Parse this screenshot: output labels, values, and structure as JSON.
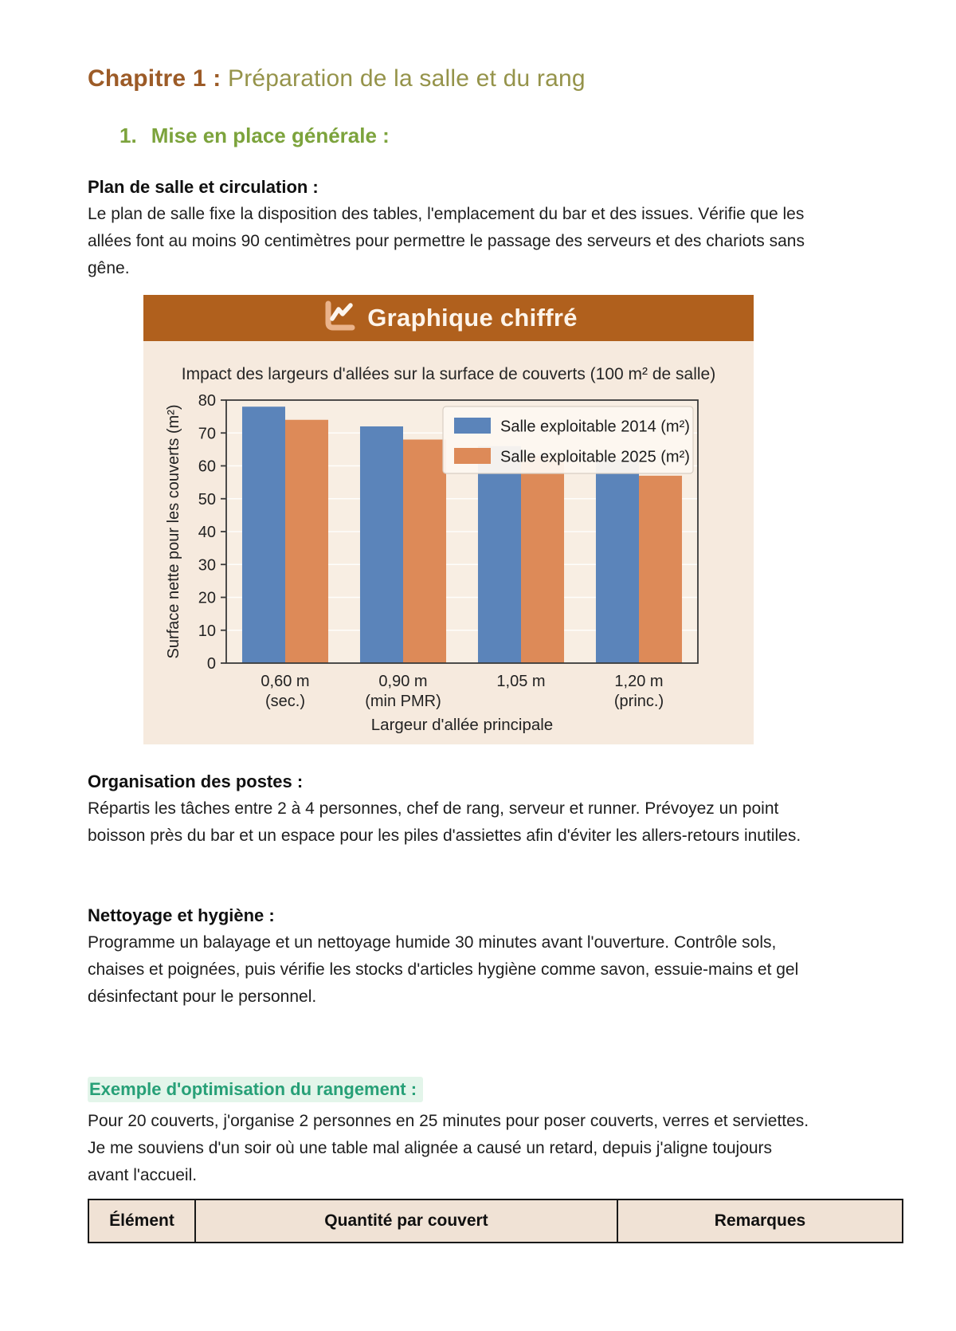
{
  "chapter": {
    "prefix": "Chapitre 1 :",
    "title": "Préparation de la salle et du rang"
  },
  "section": {
    "number": "1.",
    "title": "Mise en place générale :"
  },
  "blocks": {
    "plan": {
      "heading": "Plan de salle et circulation :",
      "body": "Le plan de salle fixe la disposition des tables, l'emplacement du bar et des issues. Vérifie que les allées font au moins 90 centimètres pour permettre le passage des serveurs et des chariots sans gêne."
    },
    "organisation": {
      "heading": "Organisation des postes :",
      "body": "Répartis les tâches entre 2 à 4 personnes, chef de rang, serveur et runner. Prévoyez un point boisson près du bar et un espace pour les piles d'assiettes afin d'éviter les allers-retours inutiles."
    },
    "nettoyage": {
      "heading": "Nettoyage et hygiène :",
      "body": "Programme un balayage et un nettoyage humide 30 minutes avant l'ouverture. Contrôle sols, chaises et poignées, puis vérifie les stocks d'articles hygiène comme savon, essuie-mains et gel désinfectant pour le personnel."
    },
    "exemple": {
      "heading": "Exemple d'optimisation du rangement :",
      "body": "Pour 20 couverts, j'organise 2 personnes en 25 minutes pour poser couverts, verres et serviettes. Je me souviens d'un soir où une table mal alignée a causé un retard, depuis j'aligne toujours avant l'accueil."
    }
  },
  "chart_card": {
    "banner_title": "Graphique chiffré",
    "banner_icon": "line-chart-icon",
    "banner_color": "#b0601d",
    "card_bg": "#f6eade"
  },
  "chart_data": {
    "type": "bar",
    "title": "Impact des largeurs d'allées sur la surface de couverts (100 m² de salle)",
    "categories": [
      [
        "0,60 m",
        "(sec.)"
      ],
      [
        "0,90 m",
        "(min PMR)"
      ],
      [
        "1,05 m"
      ],
      [
        "1,20 m",
        "(princ.)"
      ]
    ],
    "series": [
      {
        "name": "Salle exploitable 2014 (m²)",
        "color": "#5b84ba",
        "values": [
          78,
          72,
          66,
          62
        ]
      },
      {
        "name": "Salle exploitable 2025 (m²)",
        "color": "#dd8a58",
        "values": [
          74,
          68,
          63,
          57
        ]
      }
    ],
    "xlabel": "Largeur d'allée principale",
    "ylabel": "Surface nette pour les couverts (m²)",
    "ylim": [
      0,
      80
    ],
    "ytick_step": 10,
    "grid": true,
    "legend_position": "upper right",
    "colors": {
      "plot_bg": "#f8eee3",
      "axis": "#3a3a3a",
      "grid": "rgba(255,255,255,0.85)",
      "tick_text": "#222222"
    }
  },
  "table": {
    "headers": [
      "Élément",
      "Quantité par couvert",
      "Remarques"
    ]
  }
}
